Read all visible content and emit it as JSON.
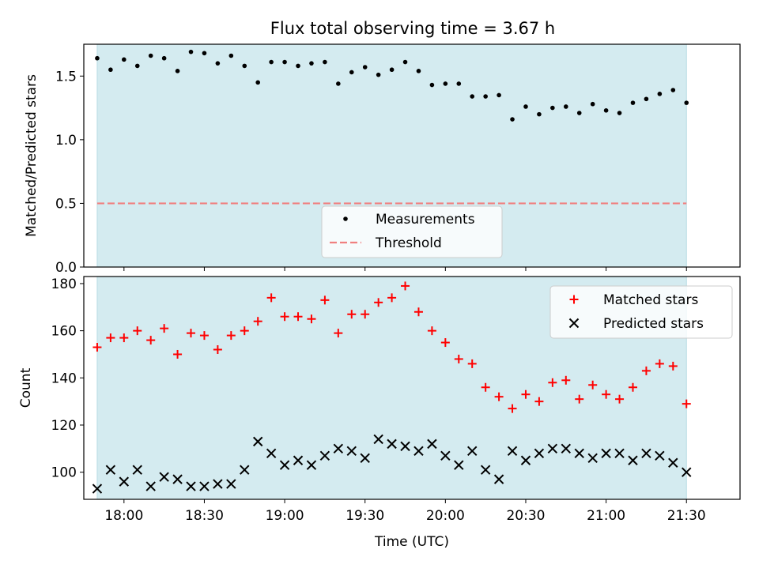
{
  "title": "Flux total observing time = 3.67 h",
  "colors": {
    "background_span": "#d4ebf0",
    "measurement": "#000000",
    "threshold": "#f08080",
    "matched": "#ff0000",
    "predicted": "#000000"
  },
  "chart_data": [
    {
      "type": "scatter",
      "panel": "top",
      "title": "Flux total observing time = 3.67 h",
      "ylabel": "Matched/Predicted stars",
      "ylim": [
        0,
        1.75
      ],
      "yticks": [
        0.0,
        0.5,
        1.0,
        1.5
      ],
      "ytick_labels": [
        "0.0",
        "0.5",
        "1.0",
        "1.5"
      ],
      "xlim_minutes": [
        1065,
        1310
      ],
      "xticks_minutes": [
        1080,
        1110,
        1140,
        1170,
        1200,
        1230,
        1260,
        1290
      ],
      "span_minutes": [
        1070,
        1290
      ],
      "legend_position": "lower-center",
      "threshold": 0.5,
      "series": [
        {
          "name": "Measurements",
          "x_minutes": [
            1070,
            1075,
            1080,
            1085,
            1090,
            1095,
            1100,
            1105,
            1110,
            1115,
            1120,
            1125,
            1130,
            1135,
            1140,
            1145,
            1150,
            1155,
            1160,
            1165,
            1170,
            1175,
            1180,
            1185,
            1190,
            1195,
            1200,
            1205,
            1210,
            1215,
            1220,
            1225,
            1230,
            1235,
            1240,
            1245,
            1250,
            1255,
            1260,
            1265,
            1270,
            1275,
            1280,
            1285,
            1290
          ],
          "values": [
            1.64,
            1.55,
            1.63,
            1.58,
            1.66,
            1.64,
            1.54,
            1.69,
            1.68,
            1.6,
            1.66,
            1.58,
            1.45,
            1.61,
            1.61,
            1.58,
            1.6,
            1.61,
            1.44,
            1.53,
            1.57,
            1.51,
            1.55,
            1.61,
            1.54,
            1.43,
            1.44,
            1.44,
            1.34,
            1.34,
            1.35,
            1.16,
            1.26,
            1.2,
            1.25,
            1.26,
            1.21,
            1.28,
            1.23,
            1.21,
            1.29,
            1.32,
            1.36,
            1.39,
            1.29
          ]
        },
        {
          "name": "Threshold",
          "style": "dashed",
          "values": [
            0.5
          ]
        }
      ],
      "legend": [
        "Measurements",
        "Threshold"
      ]
    },
    {
      "type": "scatter",
      "panel": "bottom",
      "xlabel": "Time (UTC)",
      "ylabel": "Count",
      "ylim": [
        88.5,
        183
      ],
      "yticks": [
        100,
        120,
        140,
        160,
        180
      ],
      "ytick_labels": [
        "100",
        "120",
        "140",
        "160",
        "180"
      ],
      "xlim_minutes": [
        1065,
        1310
      ],
      "xticks_minutes": [
        1080,
        1110,
        1140,
        1170,
        1200,
        1230,
        1260,
        1290
      ],
      "xtick_labels": [
        "18:00",
        "18:30",
        "19:00",
        "19:30",
        "20:00",
        "20:30",
        "21:00",
        "21:30"
      ],
      "span_minutes": [
        1070,
        1290
      ],
      "legend_position": "top-right",
      "series": [
        {
          "name": "Matched stars",
          "marker": "+",
          "x_minutes": [
            1070,
            1075,
            1080,
            1085,
            1090,
            1095,
            1100,
            1105,
            1110,
            1115,
            1120,
            1125,
            1130,
            1135,
            1140,
            1145,
            1150,
            1155,
            1160,
            1165,
            1170,
            1175,
            1180,
            1185,
            1190,
            1195,
            1200,
            1205,
            1210,
            1215,
            1220,
            1225,
            1230,
            1235,
            1240,
            1245,
            1250,
            1255,
            1260,
            1265,
            1270,
            1275,
            1280,
            1285,
            1290
          ],
          "values": [
            153,
            157,
            157,
            160,
            156,
            161,
            150,
            159,
            158,
            152,
            158,
            160,
            164,
            174,
            166,
            166,
            165,
            173,
            159,
            167,
            167,
            172,
            174,
            179,
            168,
            160,
            155,
            148,
            146,
            136,
            132,
            127,
            133,
            130,
            138,
            139,
            131,
            137,
            133,
            131,
            136,
            143,
            146,
            145,
            129
          ]
        },
        {
          "name": "Predicted stars",
          "marker": "x",
          "x_minutes": [
            1070,
            1075,
            1080,
            1085,
            1090,
            1095,
            1100,
            1105,
            1110,
            1115,
            1120,
            1125,
            1130,
            1135,
            1140,
            1145,
            1150,
            1155,
            1160,
            1165,
            1170,
            1175,
            1180,
            1185,
            1190,
            1195,
            1200,
            1205,
            1210,
            1215,
            1220,
            1225,
            1230,
            1235,
            1240,
            1245,
            1250,
            1255,
            1260,
            1265,
            1270,
            1275,
            1280,
            1285,
            1290
          ],
          "values": [
            93,
            101,
            96,
            101,
            94,
            98,
            97,
            94,
            94,
            95,
            95,
            101,
            113,
            108,
            103,
            105,
            103,
            107,
            110,
            109,
            106,
            114,
            112,
            111,
            109,
            112,
            107,
            103,
            109,
            101,
            97,
            109,
            105,
            108,
            110,
            110,
            108,
            106,
            108,
            108,
            105,
            108,
            107,
            104,
            100
          ]
        }
      ],
      "legend": [
        "Matched stars",
        "Predicted stars"
      ]
    }
  ]
}
